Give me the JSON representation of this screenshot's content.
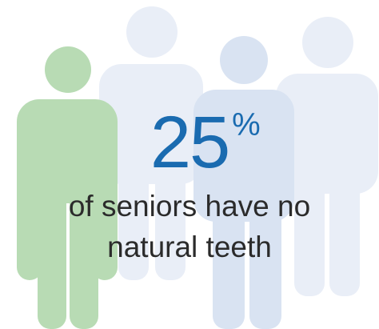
{
  "stat": {
    "number": "25",
    "unit": "%"
  },
  "caption": "of seniors have no\nnatural teeth",
  "colors": {
    "highlight_person": "#b8dbb4",
    "faint_person": "#e9eef7",
    "mid_person": "#d9e3f2",
    "stat_text": "#1a6bb0",
    "caption_text": "#2b2b2b"
  },
  "figures": {
    "count": 4,
    "highlighted": 1
  }
}
